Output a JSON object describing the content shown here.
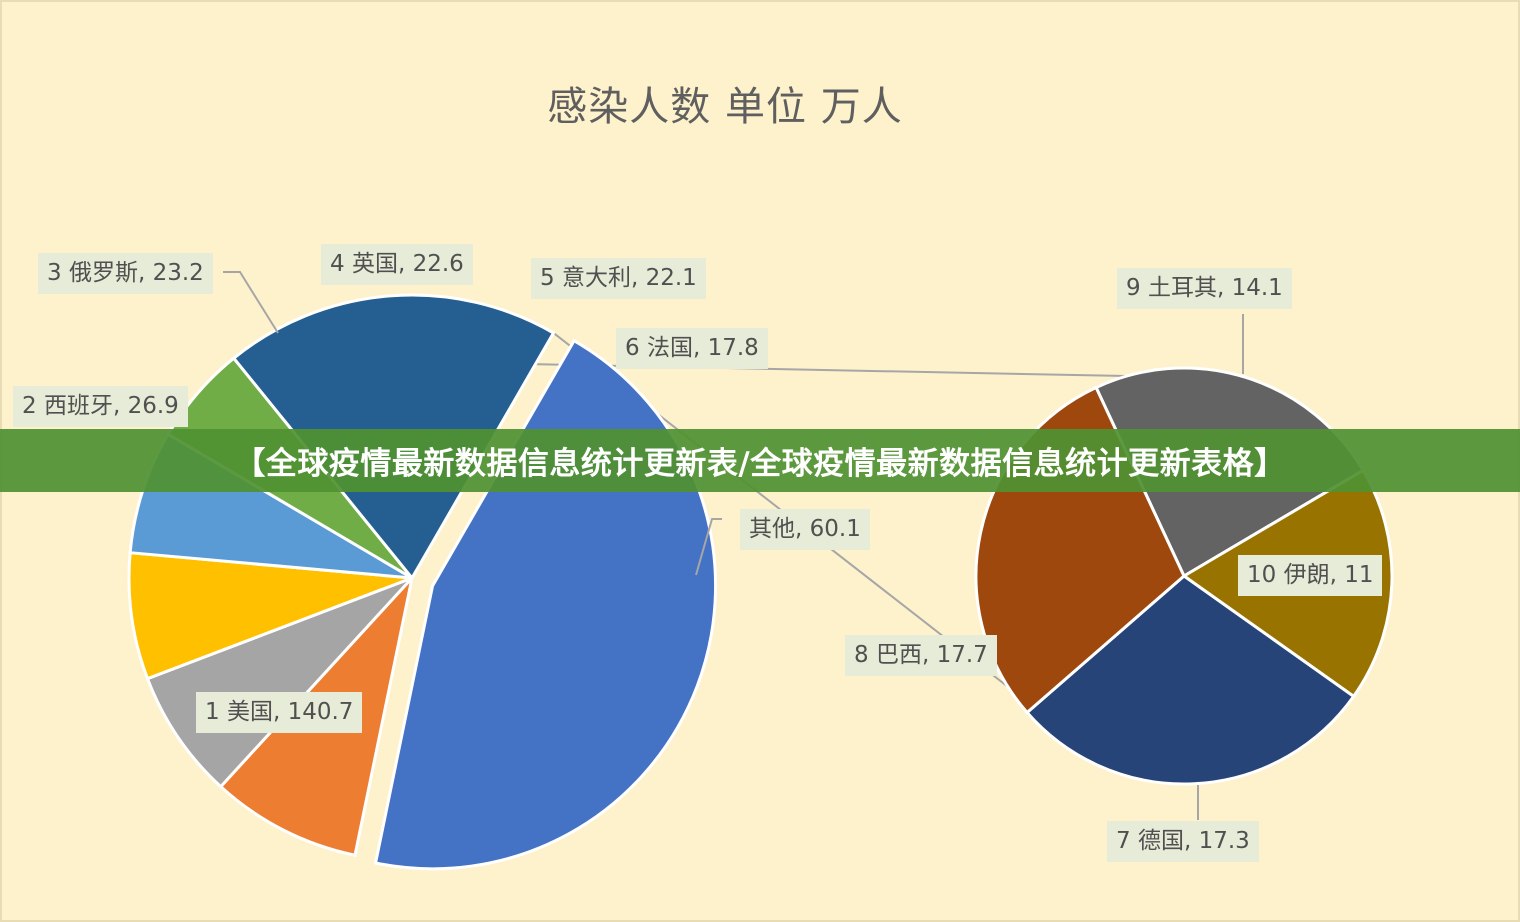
{
  "banner": {
    "text": "【全球疫情最新数据信息统计更新表/全球疫情最新数据信息统计更新表格】"
  },
  "chart_data": {
    "type": "pie",
    "subtype": "pie-of-pie",
    "title": "感染人数 单位 万人",
    "unit": "万人",
    "main_pie": [
      {
        "label": "1 美国, 140.7",
        "name": "1 美国",
        "value": 140.7,
        "color": "#4472c4",
        "exploded": true
      },
      {
        "label": "2 西班牙, 26.9",
        "name": "2 西班牙",
        "value": 26.9,
        "color": "#ed7d31"
      },
      {
        "label": "3  俄罗斯, 23.2",
        "name": "3 俄罗斯",
        "value": 23.2,
        "color": "#a5a5a5"
      },
      {
        "label": "4 英国, 22.6",
        "name": "4 英国",
        "value": 22.6,
        "color": "#ffc000"
      },
      {
        "label": "5 意大利, 22.1",
        "name": "5 意大利",
        "value": 22.1,
        "color": "#5b9bd5"
      },
      {
        "label": "6 法国, 17.8",
        "name": "6 法国",
        "value": 17.8,
        "color": "#70ad47"
      },
      {
        "label": "其他, 60.1",
        "name": "其他",
        "value": 60.1,
        "color": "#255e91"
      }
    ],
    "secondary_pie": [
      {
        "label": "9 土耳其, 14.1",
        "name": "9 土耳其",
        "value": 14.1,
        "color": "#636363"
      },
      {
        "label": "10 伊朗, 11",
        "name": "10 伊朗",
        "value": 11,
        "color": "#997300"
      },
      {
        "label": "7 德国, 17.3",
        "name": "7 德国",
        "value": 17.3,
        "color": "#264478"
      },
      {
        "label": "8 巴西, 17.7",
        "name": "8 巴西",
        "value": 17.7,
        "color": "#9e480e"
      }
    ]
  }
}
